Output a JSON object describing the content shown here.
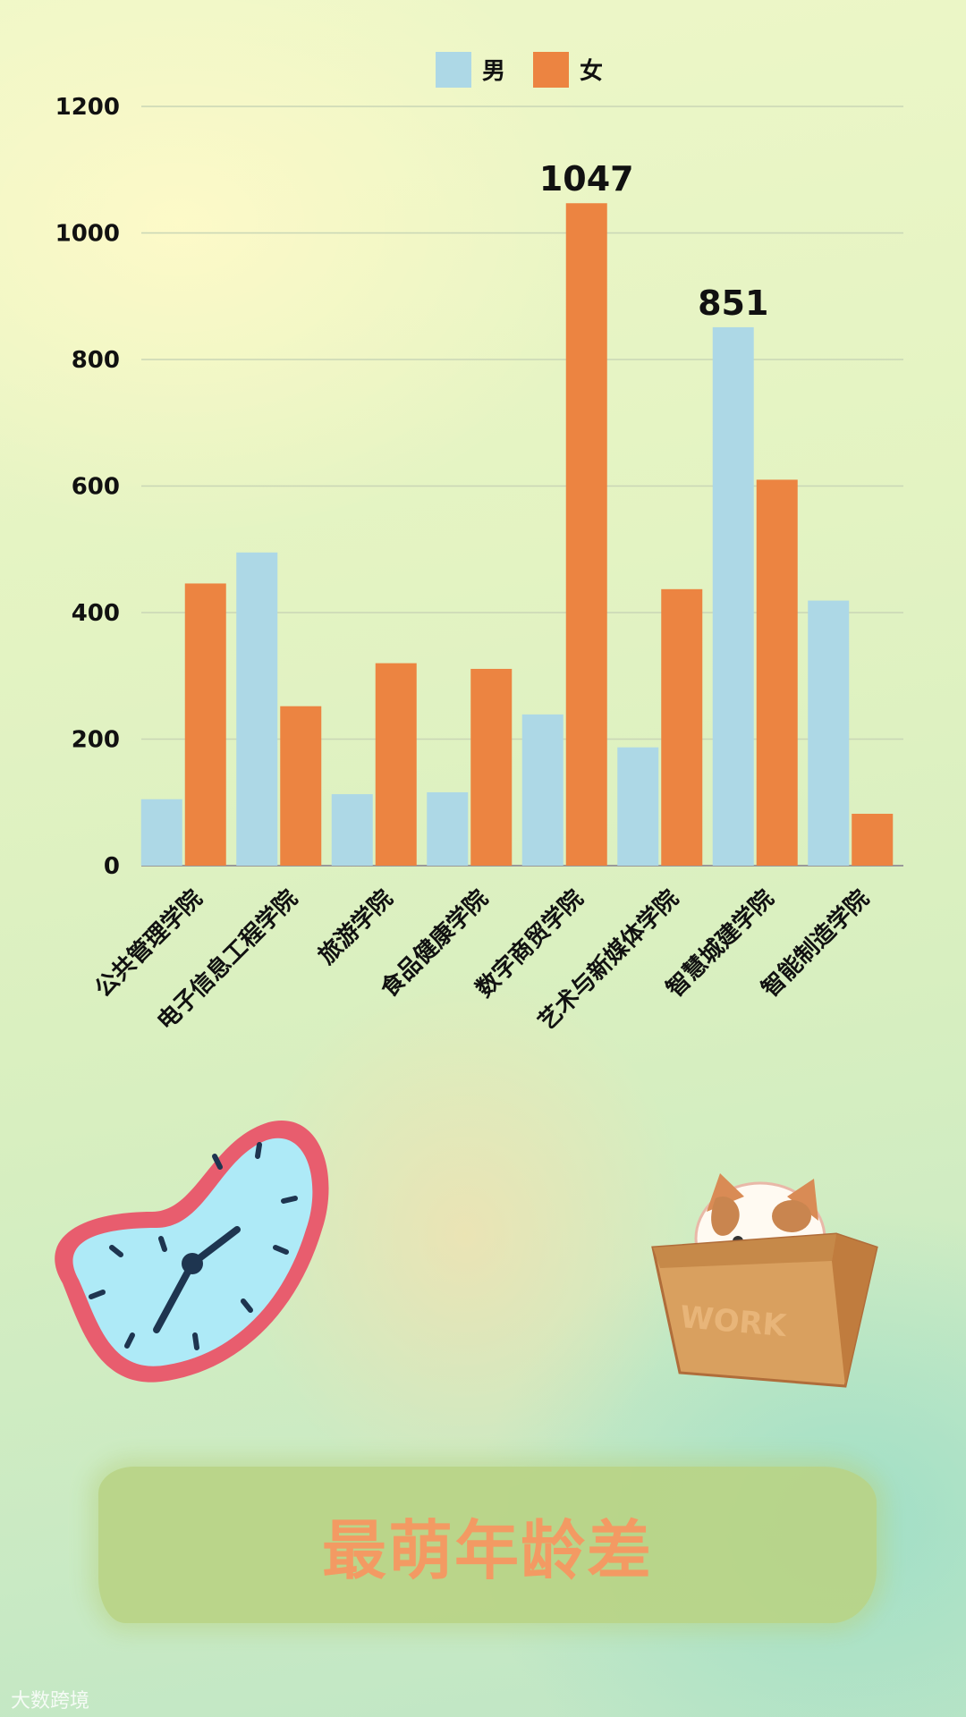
{
  "banner": {
    "title": "最萌年龄差"
  },
  "watermark": {
    "text": "大数跨境"
  },
  "colors": {
    "male": "#add8e6",
    "female": "#ec8441",
    "grid": "#c9d6b6",
    "axis": "#999999"
  },
  "chart_data": {
    "type": "bar",
    "categories": [
      "公共管理学院",
      "电子信息工程学院",
      "旅游学院",
      "食品健康学院",
      "数字商贸学院",
      "艺术与新媒体学院",
      "智慧城建学院",
      "智能制造学院"
    ],
    "series": [
      {
        "name": "男",
        "color": "#add8e6",
        "values": [
          105,
          495,
          113,
          116,
          239,
          187,
          851,
          419
        ]
      },
      {
        "name": "女",
        "color": "#ec8441",
        "values": [
          446,
          252,
          320,
          311,
          1047,
          437,
          610,
          82
        ]
      }
    ],
    "data_labels": [
      {
        "series": 1,
        "index": 4,
        "text": "1047"
      },
      {
        "series": 0,
        "index": 6,
        "text": "851"
      }
    ],
    "ylim": [
      0,
      1200
    ],
    "yticks": [
      0,
      200,
      400,
      600,
      800,
      1000,
      1200
    ],
    "xlabel": "",
    "ylabel": "",
    "grid": true,
    "legend": "top-center"
  }
}
